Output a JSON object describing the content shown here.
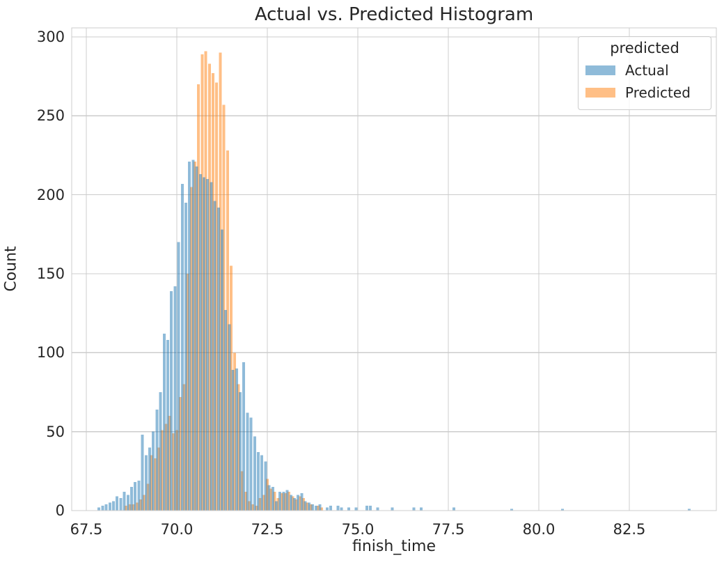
{
  "title": "Actual vs. Predicted Histogram",
  "colors": {
    "text": "#262626",
    "grid": "#cccccc",
    "spine": "#cccccc",
    "axes_background": "#ffffff",
    "actual_fill": "rgba(31,119,180,0.5)",
    "predicted_fill": "rgba(255,127,14,0.5)",
    "actual_swatch": "#8fbbd9",
    "predicted_swatch": "#ffbf86"
  },
  "legend": {
    "title": "predicted",
    "entries": [
      {
        "label": "Actual",
        "color": "#8fbbd9"
      },
      {
        "label": "Predicted",
        "color": "#ffbf86"
      }
    ],
    "position": "upper right"
  },
  "chart_data": {
    "type": "bar",
    "subtype": "histogram",
    "title": "Actual vs. Predicted Histogram",
    "xlabel": "finish_time",
    "ylabel": "Count",
    "xlim": [
      67.096,
      84.904
    ],
    "ylim": [
      0,
      305.7
    ],
    "xticks": [
      67.5,
      70.0,
      72.5,
      75.0,
      77.5,
      80.0,
      82.5
    ],
    "xtick_labels": [
      "67.5",
      "70.0",
      "72.5",
      "75.0",
      "77.5",
      "80.0",
      "82.5"
    ],
    "yticks": [
      0,
      50,
      100,
      150,
      200,
      250,
      300
    ],
    "ytick_labels": [
      "0",
      "50",
      "100",
      "150",
      "200",
      "250",
      "300"
    ],
    "grid": true,
    "legend_position": "upper right",
    "bin_width": 0.1,
    "series": [
      {
        "name": "Predicted",
        "fill": "rgba(255,127,14,0.5)",
        "bins": [
          [
            68.55,
            3
          ],
          [
            68.65,
            4
          ],
          [
            68.75,
            4
          ],
          [
            68.85,
            5
          ],
          [
            68.95,
            7
          ],
          [
            69.05,
            10
          ],
          [
            69.15,
            17
          ],
          [
            69.25,
            35
          ],
          [
            69.35,
            33
          ],
          [
            69.45,
            40
          ],
          [
            69.55,
            51
          ],
          [
            69.65,
            55
          ],
          [
            69.75,
            60
          ],
          [
            69.85,
            49
          ],
          [
            69.95,
            51
          ],
          [
            70.05,
            72
          ],
          [
            70.15,
            80
          ],
          [
            70.25,
            150
          ],
          [
            70.35,
            205
          ],
          [
            70.45,
            221
          ],
          [
            70.55,
            270
          ],
          [
            70.65,
            289
          ],
          [
            70.75,
            291
          ],
          [
            70.85,
            283
          ],
          [
            70.95,
            277
          ],
          [
            71.05,
            271
          ],
          [
            71.15,
            290
          ],
          [
            71.25,
            257
          ],
          [
            71.35,
            228
          ],
          [
            71.45,
            155
          ],
          [
            71.55,
            100
          ],
          [
            71.65,
            80
          ],
          [
            71.75,
            25
          ],
          [
            71.85,
            12
          ],
          [
            71.95,
            6
          ],
          [
            72.05,
            4
          ],
          [
            72.15,
            3
          ],
          [
            72.25,
            8
          ],
          [
            72.35,
            10
          ],
          [
            72.45,
            20
          ],
          [
            72.55,
            14
          ],
          [
            72.65,
            12
          ],
          [
            72.75,
            8
          ],
          [
            72.85,
            11
          ],
          [
            72.95,
            11
          ],
          [
            73.05,
            12
          ],
          [
            73.15,
            9
          ],
          [
            73.25,
            7
          ],
          [
            73.35,
            9
          ],
          [
            73.45,
            8
          ],
          [
            73.55,
            5
          ],
          [
            73.65,
            4
          ],
          [
            73.85,
            3
          ],
          [
            73.95,
            2
          ]
        ]
      },
      {
        "name": "Actual",
        "fill": "rgba(31,119,180,0.5)",
        "bins": [
          [
            67.8,
            2
          ],
          [
            67.9,
            3
          ],
          [
            68.0,
            4
          ],
          [
            68.1,
            5
          ],
          [
            68.2,
            6
          ],
          [
            68.3,
            9
          ],
          [
            68.4,
            8
          ],
          [
            68.5,
            12
          ],
          [
            68.6,
            10
          ],
          [
            68.7,
            15
          ],
          [
            68.8,
            18
          ],
          [
            68.9,
            19
          ],
          [
            69.0,
            48
          ],
          [
            69.1,
            35
          ],
          [
            69.2,
            40
          ],
          [
            69.3,
            50
          ],
          [
            69.4,
            64
          ],
          [
            69.5,
            75
          ],
          [
            69.6,
            112
          ],
          [
            69.7,
            108
          ],
          [
            69.8,
            139
          ],
          [
            69.9,
            142
          ],
          [
            70.0,
            170
          ],
          [
            70.1,
            207
          ],
          [
            70.2,
            195
          ],
          [
            70.3,
            221
          ],
          [
            70.4,
            222
          ],
          [
            70.5,
            218
          ],
          [
            70.6,
            213
          ],
          [
            70.7,
            211
          ],
          [
            70.8,
            210
          ],
          [
            70.9,
            208
          ],
          [
            71.0,
            196
          ],
          [
            71.1,
            192
          ],
          [
            71.2,
            178
          ],
          [
            71.3,
            127
          ],
          [
            71.4,
            118
          ],
          [
            71.5,
            89
          ],
          [
            71.6,
            90
          ],
          [
            71.7,
            75
          ],
          [
            71.8,
            94
          ],
          [
            71.9,
            62
          ],
          [
            72.0,
            59
          ],
          [
            72.1,
            47
          ],
          [
            72.2,
            37
          ],
          [
            72.3,
            35
          ],
          [
            72.4,
            31
          ],
          [
            72.5,
            16
          ],
          [
            72.6,
            15
          ],
          [
            72.7,
            6
          ],
          [
            72.8,
            12
          ],
          [
            72.9,
            12
          ],
          [
            73.0,
            13
          ],
          [
            73.1,
            10
          ],
          [
            73.2,
            8
          ],
          [
            73.3,
            10
          ],
          [
            73.4,
            11
          ],
          [
            73.5,
            6
          ],
          [
            73.6,
            5
          ],
          [
            73.7,
            4
          ],
          [
            73.8,
            3
          ],
          [
            73.9,
            4
          ],
          [
            74.1,
            2
          ],
          [
            74.2,
            3
          ],
          [
            74.4,
            3
          ],
          [
            74.5,
            2
          ],
          [
            74.7,
            2
          ],
          [
            74.9,
            2
          ],
          [
            75.2,
            3
          ],
          [
            75.3,
            3
          ],
          [
            75.5,
            2
          ],
          [
            75.9,
            2
          ],
          [
            76.5,
            2
          ],
          [
            76.7,
            2
          ],
          [
            77.6,
            2
          ],
          [
            79.2,
            1
          ],
          [
            80.6,
            1
          ],
          [
            84.1,
            1
          ]
        ]
      }
    ]
  }
}
